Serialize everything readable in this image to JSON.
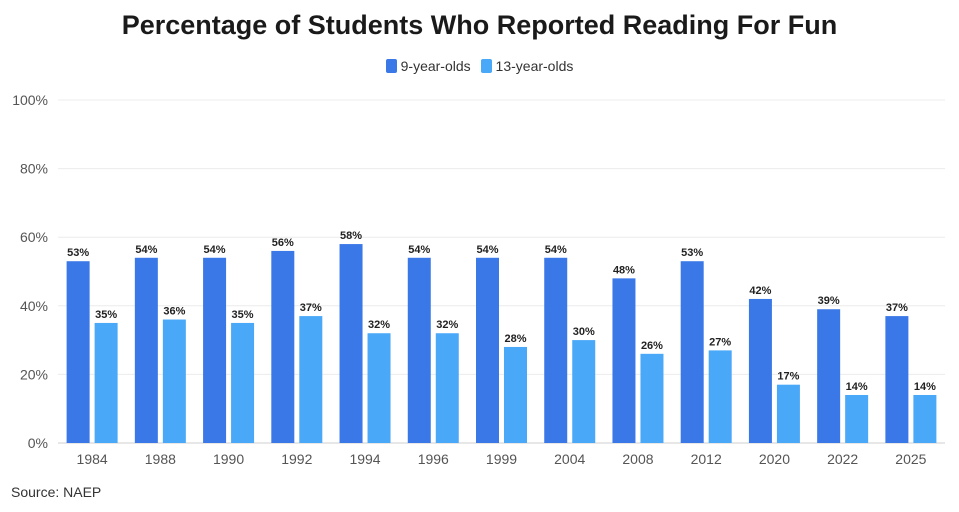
{
  "chart_data": {
    "type": "bar",
    "title": "Percentage of Students Who Reported Reading For Fun",
    "categories": [
      "1984",
      "1988",
      "1990",
      "1992",
      "1994",
      "1996",
      "1999",
      "2004",
      "2008",
      "2012",
      "2020",
      "2022",
      "2025"
    ],
    "series": [
      {
        "name": "9-year-olds",
        "color": "#3b78e7",
        "values": [
          53,
          54,
          54,
          56,
          58,
          54,
          54,
          54,
          48,
          53,
          42,
          39,
          37
        ]
      },
      {
        "name": "13-year-olds",
        "color": "#4aa8f8",
        "values": [
          35,
          36,
          35,
          37,
          32,
          32,
          28,
          30,
          26,
          27,
          17,
          14,
          14
        ]
      }
    ],
    "ylim": [
      0,
      100
    ],
    "yticks": [
      0,
      20,
      40,
      60,
      80,
      100
    ],
    "ytick_labels": [
      "0%",
      "20%",
      "40%",
      "60%",
      "80%",
      "100%"
    ],
    "data_label_suffix": "%",
    "grid": true,
    "legend_position": "top-center",
    "xlabel": "",
    "ylabel": ""
  },
  "source": "Source: NAEP"
}
